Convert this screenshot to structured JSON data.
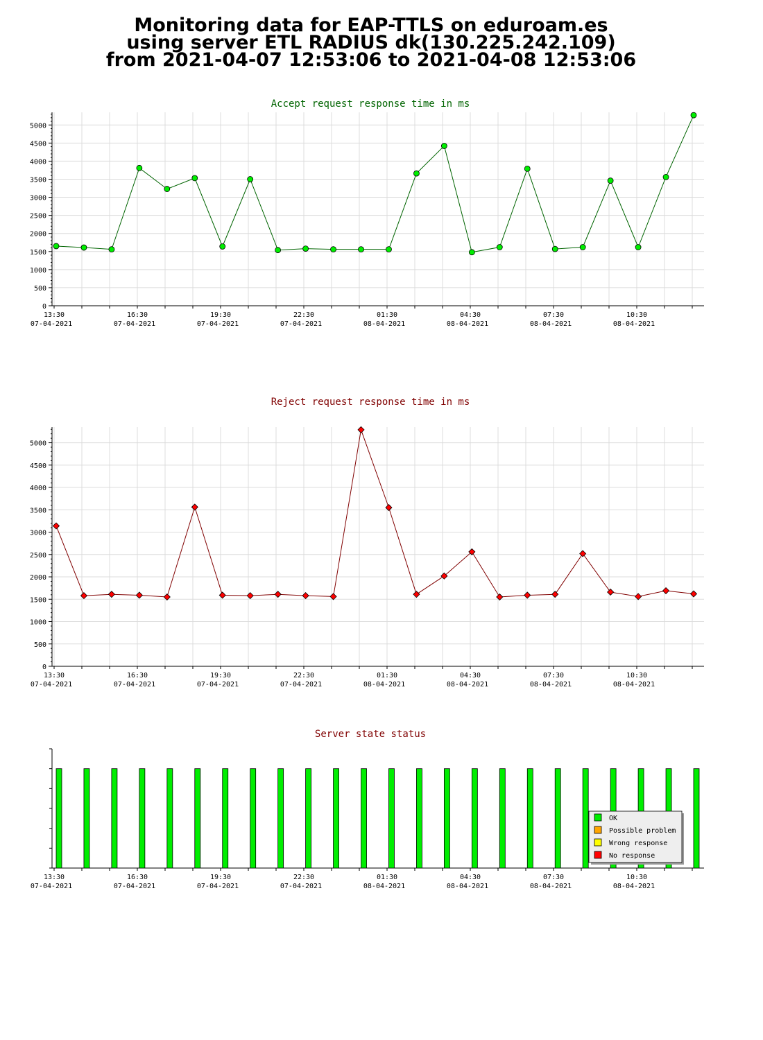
{
  "header": {
    "line1": "Monitoring data for EAP-TTLS on eduroam.es",
    "line2": "using server ETL RADIUS dk(130.225.242.109)",
    "line3": "from 2021-04-07 12:53:06 to 2021-04-08 12:53:06"
  },
  "colors": {
    "accept_line": "#006400",
    "accept_marker": "#00ee00",
    "reject_line": "#800000",
    "reject_marker": "#ff0000",
    "ok": "#00ee00",
    "possible_problem": "#ffa500",
    "wrong_response": "#ffff00",
    "no_response": "#ff0000",
    "grid": "#dcdcdc"
  },
  "chart_data": [
    {
      "type": "line",
      "title": "Accept request response time in ms",
      "x_tick_labels": [
        [
          "13:30",
          "07-04-2021"
        ],
        [
          "16:30",
          "07-04-2021"
        ],
        [
          "19:30",
          "07-04-2021"
        ],
        [
          "22:30",
          "07-04-2021"
        ],
        [
          "01:30",
          "08-04-2021"
        ],
        [
          "04:30",
          "08-04-2021"
        ],
        [
          "07:30",
          "08-04-2021"
        ],
        [
          "10:30",
          "08-04-2021"
        ]
      ],
      "y_ticks": [
        0,
        500,
        1000,
        1500,
        2000,
        2500,
        3000,
        3500,
        4000,
        4500,
        5000
      ],
      "ylim": [
        0,
        5350
      ],
      "x_times": [
        "13:30",
        "14:30",
        "15:30",
        "16:30",
        "17:30",
        "18:30",
        "19:30",
        "20:30",
        "21:30",
        "22:30",
        "23:30",
        "00:30",
        "01:30",
        "02:30",
        "03:30",
        "04:30",
        "05:30",
        "06:30",
        "07:30",
        "08:30",
        "09:30",
        "10:30",
        "11:30",
        "12:30"
      ],
      "values": [
        1650,
        1610,
        1560,
        3810,
        3230,
        3530,
        1640,
        3500,
        1540,
        1580,
        1560,
        1560,
        1560,
        3660,
        4420,
        1480,
        1620,
        3790,
        1570,
        1620,
        3460,
        1620,
        3560,
        5270
      ]
    },
    {
      "type": "line",
      "title": "Reject request response time in ms",
      "x_tick_labels": [
        [
          "13:30",
          "07-04-2021"
        ],
        [
          "16:30",
          "07-04-2021"
        ],
        [
          "19:30",
          "07-04-2021"
        ],
        [
          "22:30",
          "07-04-2021"
        ],
        [
          "01:30",
          "08-04-2021"
        ],
        [
          "04:30",
          "08-04-2021"
        ],
        [
          "07:30",
          "08-04-2021"
        ],
        [
          "10:30",
          "08-04-2021"
        ]
      ],
      "y_ticks": [
        0,
        500,
        1000,
        1500,
        2000,
        2500,
        3000,
        3500,
        4000,
        4500,
        5000
      ],
      "ylim": [
        0,
        5350
      ],
      "x_times": [
        "13:30",
        "14:30",
        "15:30",
        "16:30",
        "17:30",
        "18:30",
        "19:30",
        "20:30",
        "21:30",
        "22:30",
        "23:30",
        "00:30",
        "01:30",
        "02:30",
        "03:30",
        "04:30",
        "05:30",
        "06:30",
        "07:30",
        "08:30",
        "09:30",
        "10:30",
        "11:30",
        "12:30"
      ],
      "values": [
        3140,
        1580,
        1610,
        1590,
        1550,
        3560,
        1590,
        1580,
        1610,
        1580,
        1560,
        5290,
        3550,
        1610,
        2020,
        2560,
        1550,
        1590,
        1610,
        2520,
        1660,
        1560,
        1690,
        1620
      ]
    },
    {
      "type": "bar",
      "title": "Server state status",
      "x_tick_labels": [
        [
          "13:30",
          "07-04-2021"
        ],
        [
          "16:30",
          "07-04-2021"
        ],
        [
          "19:30",
          "07-04-2021"
        ],
        [
          "22:30",
          "07-04-2021"
        ],
        [
          "01:30",
          "08-04-2021"
        ],
        [
          "04:30",
          "08-04-2021"
        ],
        [
          "07:30",
          "08-04-2021"
        ],
        [
          "10:30",
          "08-04-2021"
        ]
      ],
      "x_times": [
        "13:30",
        "14:30",
        "15:30",
        "16:30",
        "17:30",
        "18:30",
        "19:30",
        "20:30",
        "21:30",
        "22:30",
        "23:30",
        "00:30",
        "01:30",
        "02:30",
        "03:30",
        "04:30",
        "05:30",
        "06:30",
        "07:30",
        "08:30",
        "09:30",
        "10:30",
        "11:30",
        "12:30"
      ],
      "states": [
        "OK",
        "OK",
        "OK",
        "OK",
        "OK",
        "OK",
        "OK",
        "OK",
        "OK",
        "OK",
        "OK",
        "OK",
        "OK",
        "OK",
        "OK",
        "OK",
        "OK",
        "OK",
        "OK",
        "OK",
        "OK",
        "OK",
        "OK",
        "OK"
      ],
      "legend": {
        "placement": "bottom-right",
        "items": [
          {
            "label": "OK",
            "color_key": "ok"
          },
          {
            "label": "Possible problem",
            "color_key": "possible_problem"
          },
          {
            "label": "Wrong response",
            "color_key": "wrong_response"
          },
          {
            "label": "No response",
            "color_key": "no_response"
          }
        ]
      }
    }
  ]
}
